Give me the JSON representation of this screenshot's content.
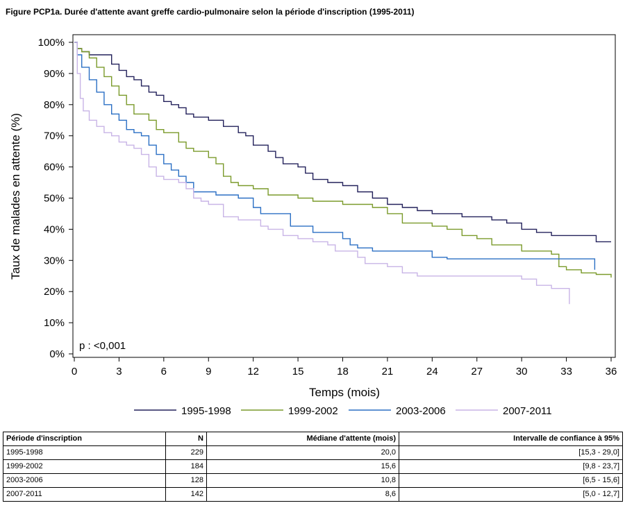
{
  "figure": {
    "title": "Figure PCP1a. Durée d'attente avant greffe cardio-pulmonaire selon la période d'inscription (1995-2011)"
  },
  "chart_data": {
    "type": "line",
    "xlabel": "Temps (mois)",
    "ylabel": "Taux de malades en attente (%)",
    "xlim": [
      0,
      36
    ],
    "ylim": [
      0,
      100
    ],
    "x_ticks": [
      "0",
      "3",
      "6",
      "9",
      "12",
      "15",
      "18",
      "21",
      "24",
      "27",
      "30",
      "33",
      "36"
    ],
    "y_ticks": [
      "0%",
      "10%",
      "20%",
      "30%",
      "40%",
      "50%",
      "60%",
      "70%",
      "80%",
      "90%",
      "100%"
    ],
    "annotation": "p : <0,001",
    "grid": false,
    "legend_position": "bottom",
    "series": [
      {
        "name": "1995-1998",
        "color": "#22205a",
        "points": [
          [
            0,
            100
          ],
          [
            0.2,
            98
          ],
          [
            0.5,
            97
          ],
          [
            1,
            96
          ],
          [
            2,
            96
          ],
          [
            2.5,
            93
          ],
          [
            3,
            91
          ],
          [
            3.5,
            89
          ],
          [
            4,
            88
          ],
          [
            4.5,
            86
          ],
          [
            5,
            84
          ],
          [
            5.5,
            83
          ],
          [
            6,
            81
          ],
          [
            6.5,
            80
          ],
          [
            7,
            79
          ],
          [
            7.5,
            77
          ],
          [
            8,
            76
          ],
          [
            9,
            75
          ],
          [
            10,
            73
          ],
          [
            11,
            71
          ],
          [
            11.5,
            70
          ],
          [
            12,
            67
          ],
          [
            13,
            65
          ],
          [
            13.5,
            63
          ],
          [
            14,
            61
          ],
          [
            15,
            60
          ],
          [
            15.5,
            58
          ],
          [
            16,
            56
          ],
          [
            17,
            55
          ],
          [
            18,
            54
          ],
          [
            19,
            52
          ],
          [
            20,
            50
          ],
          [
            21,
            48
          ],
          [
            22,
            47
          ],
          [
            23,
            46
          ],
          [
            24,
            45
          ],
          [
            25,
            45
          ],
          [
            26,
            44
          ],
          [
            28,
            43
          ],
          [
            29,
            42
          ],
          [
            30,
            40
          ],
          [
            31,
            39
          ],
          [
            32,
            38
          ],
          [
            33,
            38
          ],
          [
            34,
            38
          ],
          [
            35,
            36
          ],
          [
            36,
            36
          ]
        ]
      },
      {
        "name": "1999-2002",
        "color": "#7a9a2a",
        "points": [
          [
            0,
            100
          ],
          [
            0.2,
            98
          ],
          [
            0.5,
            97
          ],
          [
            1,
            95
          ],
          [
            1.5,
            92
          ],
          [
            2,
            89
          ],
          [
            2.5,
            86
          ],
          [
            3,
            83
          ],
          [
            3.5,
            80
          ],
          [
            4,
            77
          ],
          [
            5,
            75
          ],
          [
            5.5,
            72
          ],
          [
            6,
            71
          ],
          [
            7,
            68
          ],
          [
            7.5,
            66
          ],
          [
            8,
            65
          ],
          [
            9,
            63
          ],
          [
            9.5,
            61
          ],
          [
            10,
            57
          ],
          [
            10.5,
            55
          ],
          [
            11,
            54
          ],
          [
            12,
            53
          ],
          [
            13,
            51
          ],
          [
            14,
            51
          ],
          [
            15,
            50
          ],
          [
            16,
            49
          ],
          [
            17,
            49
          ],
          [
            18,
            48
          ],
          [
            19,
            48
          ],
          [
            20,
            47
          ],
          [
            21,
            45
          ],
          [
            22,
            42
          ],
          [
            24,
            41
          ],
          [
            25,
            40
          ],
          [
            26,
            38
          ],
          [
            27,
            37
          ],
          [
            28,
            35
          ],
          [
            29,
            35
          ],
          [
            30,
            33
          ],
          [
            31,
            33
          ],
          [
            32,
            32
          ],
          [
            32.5,
            28
          ],
          [
            33,
            27
          ],
          [
            34,
            26
          ],
          [
            35,
            25.5
          ],
          [
            36,
            24.5
          ]
        ]
      },
      {
        "name": "2003-2006",
        "color": "#2a6fc4",
        "points": [
          [
            0,
            100
          ],
          [
            0.2,
            96
          ],
          [
            0.5,
            92
          ],
          [
            1,
            88
          ],
          [
            1.5,
            84
          ],
          [
            2,
            80
          ],
          [
            2.5,
            77
          ],
          [
            3,
            75
          ],
          [
            3.5,
            72
          ],
          [
            4,
            71
          ],
          [
            4.5,
            70
          ],
          [
            5,
            67
          ],
          [
            5.5,
            64
          ],
          [
            6,
            61
          ],
          [
            6.5,
            59
          ],
          [
            7,
            57
          ],
          [
            7.5,
            55
          ],
          [
            8,
            52
          ],
          [
            9,
            52
          ],
          [
            9.5,
            51
          ],
          [
            10,
            51
          ],
          [
            11,
            50
          ],
          [
            12,
            47
          ],
          [
            12.5,
            45
          ],
          [
            14,
            45
          ],
          [
            14.5,
            41
          ],
          [
            16,
            39
          ],
          [
            17,
            39
          ],
          [
            18,
            37
          ],
          [
            18.5,
            35
          ],
          [
            19,
            34
          ],
          [
            20,
            33
          ],
          [
            22,
            33
          ],
          [
            24,
            31
          ],
          [
            25,
            30.5
          ],
          [
            30,
            30.5
          ],
          [
            34.8,
            30.5
          ],
          [
            34.9,
            27
          ]
        ]
      },
      {
        "name": "2007-2011",
        "color": "#c8b4e6",
        "points": [
          [
            0,
            100
          ],
          [
            0.2,
            90
          ],
          [
            0.4,
            82
          ],
          [
            0.6,
            78
          ],
          [
            1,
            75
          ],
          [
            1.5,
            73
          ],
          [
            2,
            71
          ],
          [
            2.5,
            70
          ],
          [
            3,
            68
          ],
          [
            3.5,
            67
          ],
          [
            4,
            66
          ],
          [
            4.5,
            64
          ],
          [
            5,
            60
          ],
          [
            5.5,
            57
          ],
          [
            6,
            56
          ],
          [
            7,
            55
          ],
          [
            7.5,
            53
          ],
          [
            8,
            50
          ],
          [
            8.5,
            49
          ],
          [
            9,
            48
          ],
          [
            10,
            44
          ],
          [
            11,
            43
          ],
          [
            12,
            43
          ],
          [
            12.5,
            41
          ],
          [
            13,
            40
          ],
          [
            14,
            38
          ],
          [
            15,
            37
          ],
          [
            16,
            36
          ],
          [
            17,
            35
          ],
          [
            17.5,
            33
          ],
          [
            18,
            33
          ],
          [
            19,
            31
          ],
          [
            19.5,
            29
          ],
          [
            20,
            29
          ],
          [
            21,
            28
          ],
          [
            22,
            26
          ],
          [
            23,
            25
          ],
          [
            25,
            25
          ],
          [
            29,
            25
          ],
          [
            30,
            24
          ],
          [
            31,
            22
          ],
          [
            32,
            21
          ],
          [
            33,
            21
          ],
          [
            33.2,
            16
          ]
        ]
      }
    ]
  },
  "table": {
    "headers": [
      "Période d'inscription",
      "N",
      "Médiane d'attente (mois)",
      "Intervalle de confiance à 95%"
    ],
    "rows": [
      [
        "1995-1998",
        "229",
        "20,0",
        "[15,3 - 29,0]"
      ],
      [
        "1999-2002",
        "184",
        "15,6",
        "[9,8 - 23,7]"
      ],
      [
        "2003-2006",
        "128",
        "10,8",
        "[6,5 - 15,6]"
      ],
      [
        "2007-2011",
        "142",
        "8,6",
        "[5,0 - 12,7]"
      ]
    ]
  }
}
